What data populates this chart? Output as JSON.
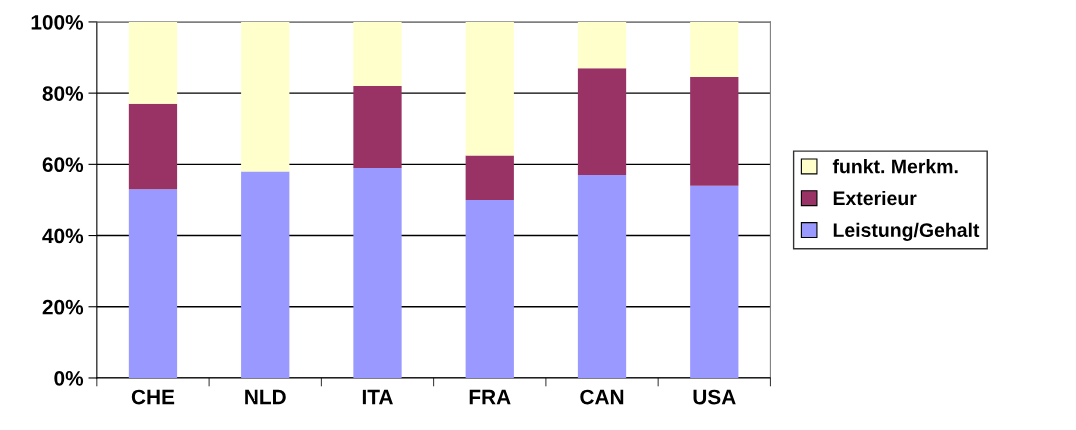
{
  "chart_data": {
    "type": "bar",
    "stacked": true,
    "categories": [
      "CHE",
      "NLD",
      "ITA",
      "FRA",
      "CAN",
      "USA"
    ],
    "series": [
      {
        "name": "Leistung/Gehalt",
        "color": "#9999ff",
        "values": [
          53,
          58,
          59,
          50,
          57,
          54
        ]
      },
      {
        "name": "Exterieur",
        "color": "#993366",
        "values": [
          24,
          0,
          23,
          12.5,
          30,
          30.5
        ]
      },
      {
        "name": "funkt. Merkm.",
        "color": "#ffffcc",
        "values": [
          23,
          42,
          18,
          37.5,
          13,
          15.5
        ]
      }
    ],
    "ylim": [
      0,
      100
    ],
    "yticks": [
      {
        "value": 0,
        "label": "0%"
      },
      {
        "value": 20,
        "label": "20%"
      },
      {
        "value": 40,
        "label": "40%"
      },
      {
        "value": 60,
        "label": "60%"
      },
      {
        "value": 80,
        "label": "80%"
      },
      {
        "value": 100,
        "label": "100%"
      }
    ],
    "grid": "y",
    "legend": "right"
  }
}
